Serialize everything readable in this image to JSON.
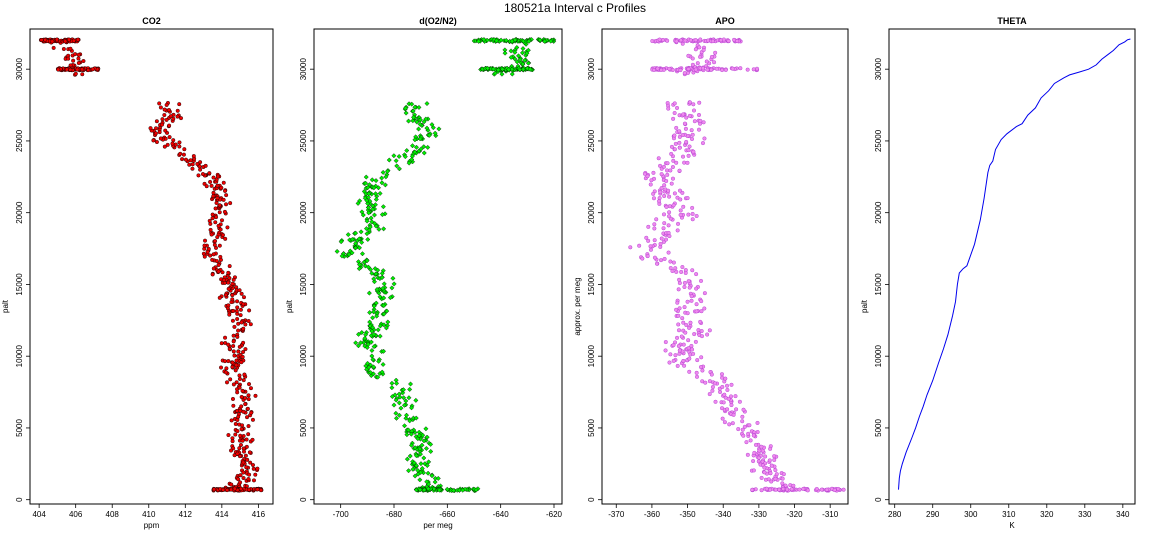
{
  "figure_title": "180521a   Interval c Profiles",
  "chart_data": [
    {
      "type": "scatter",
      "title": "CO2",
      "xlabel": "ppm",
      "ylabel": "palt",
      "xlim": [
        403.5,
        416.8
      ],
      "ylim": [
        -300,
        32800
      ],
      "xticks": [
        404,
        406,
        408,
        410,
        412,
        414,
        416
      ],
      "yticks": [
        0,
        5000,
        10000,
        15000,
        20000,
        25000,
        30000
      ],
      "fill": "#ee0000",
      "edge": "#000000",
      "profile": [
        [
          32000,
          404.8
        ],
        [
          31000,
          405.6
        ],
        [
          30000,
          406.2
        ],
        [
          29000,
          406.5
        ],
        [
          27500,
          411.5
        ],
        [
          26500,
          411.0
        ],
        [
          25500,
          410.5
        ],
        [
          24500,
          411.4
        ],
        [
          23500,
          412.5
        ],
        [
          22500,
          413.5
        ],
        [
          21000,
          413.8
        ],
        [
          20000,
          414.0
        ],
        [
          19000,
          413.7
        ],
        [
          17500,
          413.3
        ],
        [
          16500,
          413.5
        ],
        [
          16000,
          414.0
        ],
        [
          15000,
          414.4
        ],
        [
          13500,
          414.7
        ],
        [
          12000,
          415.0
        ],
        [
          10500,
          414.6
        ],
        [
          9500,
          414.6
        ],
        [
          8000,
          415.0
        ],
        [
          6500,
          415.2
        ],
        [
          5000,
          415.0
        ],
        [
          3500,
          415.2
        ],
        [
          2000,
          415.3
        ],
        [
          700,
          414.8
        ]
      ],
      "spread": 0.8,
      "hbands": [
        [
          32000,
          404,
          406.2
        ],
        [
          30000,
          405,
          407.3
        ],
        [
          700,
          413.5,
          416.2
        ]
      ],
      "marker": "circle"
    },
    {
      "type": "scatter",
      "title": "d(O2/N2)",
      "xlabel": "per meg",
      "ylabel": "palt",
      "xlim": [
        -710,
        -617
      ],
      "ylim": [
        -300,
        32800
      ],
      "xticks": [
        -700,
        -680,
        -660,
        -640,
        -620
      ],
      "yticks": [
        0,
        5000,
        10000,
        15000,
        20000,
        25000,
        30000
      ],
      "fill": "#00ee00",
      "edge": "#000000",
      "profile": [
        [
          32000,
          -632
        ],
        [
          31000,
          -634
        ],
        [
          30000,
          -635
        ],
        [
          27500,
          -674
        ],
        [
          26500,
          -670
        ],
        [
          25500,
          -667
        ],
        [
          24500,
          -672
        ],
        [
          23500,
          -678
        ],
        [
          22500,
          -686
        ],
        [
          21500,
          -690
        ],
        [
          20000,
          -688
        ],
        [
          19000,
          -688
        ],
        [
          18000,
          -695
        ],
        [
          17000,
          -696
        ],
        [
          16000,
          -688
        ],
        [
          15000,
          -683
        ],
        [
          14000,
          -686
        ],
        [
          12500,
          -686
        ],
        [
          11000,
          -690
        ],
        [
          10000,
          -688
        ],
        [
          9000,
          -690
        ],
        [
          8000,
          -677
        ],
        [
          7000,
          -677
        ],
        [
          6000,
          -675
        ],
        [
          5000,
          -674
        ],
        [
          4000,
          -670
        ],
        [
          3000,
          -672
        ],
        [
          2000,
          -670
        ],
        [
          700,
          -665
        ]
      ],
      "spread": 6,
      "hbands": [
        [
          32000,
          -650,
          -620
        ],
        [
          30000,
          -648,
          -628
        ],
        [
          700,
          -672,
          -648
        ]
      ],
      "marker": "diamond"
    },
    {
      "type": "scatter",
      "title": "APO",
      "xlabel": "",
      "ylabel": "approx. per meg",
      "xlim": [
        -374,
        -305
      ],
      "ylim": [
        -300,
        32800
      ],
      "xticks": [
        -370,
        -360,
        -350,
        -340,
        -330,
        -320,
        -310
      ],
      "yticks": [
        0,
        5000,
        10000,
        15000,
        20000,
        25000,
        30000
      ],
      "fill": "#ee88ee",
      "edge": "#aa33cc",
      "profile": [
        [
          32000,
          -348
        ],
        [
          31000,
          -346
        ],
        [
          30000,
          -347
        ],
        [
          27500,
          -352
        ],
        [
          26500,
          -350
        ],
        [
          25500,
          -350
        ],
        [
          24500,
          -350
        ],
        [
          23500,
          -355
        ],
        [
          22500,
          -358
        ],
        [
          21000,
          -355
        ],
        [
          20000,
          -352
        ],
        [
          18500,
          -358
        ],
        [
          17500,
          -362
        ],
        [
          16500,
          -357
        ],
        [
          15500,
          -350
        ],
        [
          14500,
          -348
        ],
        [
          13000,
          -350
        ],
        [
          12000,
          -348
        ],
        [
          10500,
          -352
        ],
        [
          9500,
          -350
        ],
        [
          8500,
          -342
        ],
        [
          7500,
          -338
        ],
        [
          6500,
          -338
        ],
        [
          5500,
          -336
        ],
        [
          4500,
          -332
        ],
        [
          3500,
          -330
        ],
        [
          2500,
          -328
        ],
        [
          1500,
          -326
        ],
        [
          700,
          -322
        ]
      ],
      "spread": 6,
      "hbands": [
        [
          32000,
          -360,
          -335
        ],
        [
          30000,
          -360,
          -330
        ],
        [
          700,
          -332,
          -306
        ]
      ],
      "marker": "circle"
    },
    {
      "type": "line",
      "title": "THETA",
      "xlabel": "K",
      "ylabel": "palt",
      "xlim": [
        278.5,
        343.2
      ],
      "ylim": [
        -300,
        32800
      ],
      "xticks": [
        280,
        290,
        300,
        310,
        320,
        330,
        340
      ],
      "yticks": [
        0,
        5000,
        10000,
        15000,
        20000,
        25000,
        30000
      ],
      "color": "#0000ee",
      "series": [
        {
          "name": "theta",
          "x": [
            281.0,
            281.2,
            281.5,
            282.0,
            283.0,
            284.5,
            285.5,
            286.5,
            287.5,
            288.5,
            290.0,
            291.5,
            292.8,
            294.0,
            295.2,
            296.0,
            296.5,
            297.0,
            298.0,
            299.0,
            301.0,
            302.5,
            303.5,
            304.5,
            305.0,
            305.8,
            306.5,
            308.0,
            309.5,
            312.0,
            313.5,
            315.0,
            317.0,
            318.5,
            320.5,
            322.0,
            324.5,
            326.0,
            328.5,
            331.0,
            333.0,
            334.5,
            336.0,
            337.5,
            339.0,
            340.5,
            341.2,
            342.0
          ],
          "y": [
            700,
            1500,
            2000,
            2500,
            3300,
            4300,
            5000,
            5800,
            6500,
            7300,
            8300,
            9500,
            10500,
            11500,
            12800,
            13800,
            15000,
            15800,
            16100,
            16300,
            17800,
            19500,
            21000,
            22800,
            23300,
            23600,
            24400,
            25100,
            25500,
            26000,
            26200,
            26800,
            27300,
            28000,
            28500,
            29000,
            29400,
            29600,
            29800,
            30000,
            30300,
            30700,
            31000,
            31300,
            31700,
            31900,
            32050,
            32100
          ]
        }
      ]
    }
  ]
}
